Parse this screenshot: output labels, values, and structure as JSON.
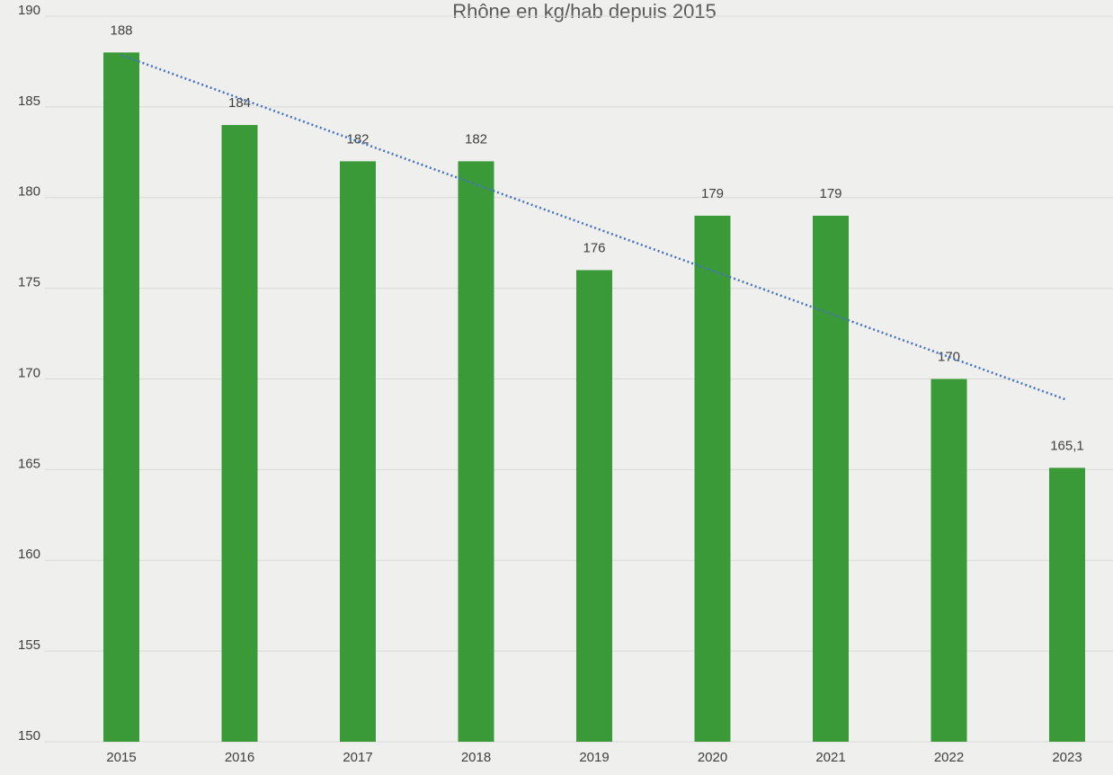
{
  "chart_data": {
    "type": "bar",
    "title": "Rhône en kg/hab depuis 2015",
    "categories": [
      "2015",
      "2016",
      "2017",
      "2018",
      "2019",
      "2020",
      "2021",
      "2022",
      "2023"
    ],
    "values": [
      188,
      184,
      182,
      182,
      176,
      179,
      179,
      170,
      165.1
    ],
    "value_labels": [
      "188",
      "184",
      "182",
      "182",
      "176",
      "179",
      "179",
      "170",
      "165,1"
    ],
    "color": "#3a9a37",
    "ylim": [
      150,
      190
    ],
    "yticks": [
      150,
      155,
      160,
      165,
      170,
      175,
      180,
      185,
      190
    ],
    "grid": true,
    "trendline": {
      "type": "linear",
      "color": "#4472c4"
    }
  }
}
